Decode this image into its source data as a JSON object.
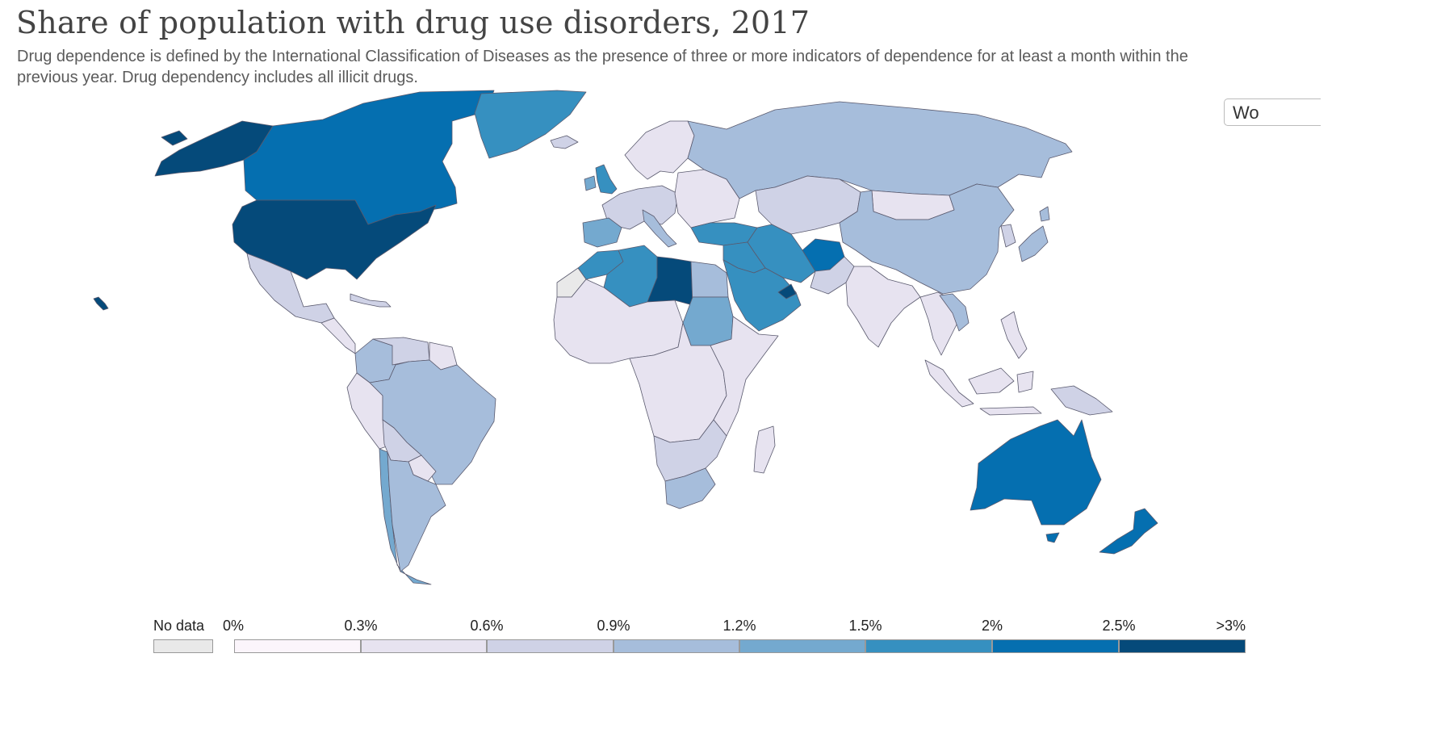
{
  "title": "Share of population with drug use disorders, 2017",
  "subtitle": "Drug dependence is defined by the International Classification of Diseases as the presence of three or more indicators of dependence for at least a month within the previous year. Drug dependency includes all illicit drugs.",
  "region_button": "Wo",
  "legend": {
    "no_data_label": "No data",
    "no_data_color": "#e9e9e9",
    "thresholds": [
      "0%",
      "0.3%",
      "0.6%",
      "0.9%",
      "1.2%",
      "1.5%",
      "2%",
      "2.5%",
      ">3%"
    ],
    "bins": [
      {
        "range": "0% - 0.3%",
        "color": "#fbf5fb"
      },
      {
        "range": "0.3% - 0.6%",
        "color": "#e7e3f0"
      },
      {
        "range": "0.6% - 0.9%",
        "color": "#cfd2e6"
      },
      {
        "range": "0.9% - 1.2%",
        "color": "#a6bddb"
      },
      {
        "range": "1.2% - 1.5%",
        "color": "#74a9cf"
      },
      {
        "range": "1.5% - 2%",
        "color": "#3690c0"
      },
      {
        "range": "2% - 2.5%",
        "color": "#056fb0"
      },
      {
        "range": "2.5% - >3%",
        "color": "#054a7a"
      }
    ]
  },
  "regions": [
    {
      "name": "Alaska",
      "bin": 7
    },
    {
      "name": "Canada",
      "bin": 6
    },
    {
      "name": "Greenland",
      "bin": 5
    },
    {
      "name": "United States",
      "bin": 7
    },
    {
      "name": "Mexico",
      "bin": 2
    },
    {
      "name": "Central America",
      "bin": 1
    },
    {
      "name": "Caribbean",
      "bin": 2
    },
    {
      "name": "Colombia",
      "bin": 3
    },
    {
      "name": "Venezuela",
      "bin": 2
    },
    {
      "name": "Guianas",
      "bin": 1
    },
    {
      "name": "Peru",
      "bin": 1
    },
    {
      "name": "Brazil",
      "bin": 3
    },
    {
      "name": "Bolivia",
      "bin": 2
    },
    {
      "name": "Paraguay",
      "bin": 1
    },
    {
      "name": "Chile",
      "bin": 4
    },
    {
      "name": "Argentina",
      "bin": 3
    },
    {
      "name": "Iceland",
      "bin": 2
    },
    {
      "name": "United Kingdom",
      "bin": 5
    },
    {
      "name": "Ireland",
      "bin": 4
    },
    {
      "name": "Scandinavia",
      "bin": 1
    },
    {
      "name": "Western Europe",
      "bin": 2
    },
    {
      "name": "Iberia",
      "bin": 4
    },
    {
      "name": "Italy",
      "bin": 3
    },
    {
      "name": "Eastern Europe",
      "bin": 1
    },
    {
      "name": "Russia",
      "bin": 3
    },
    {
      "name": "Central Asia",
      "bin": 2
    },
    {
      "name": "Mongolia",
      "bin": 1
    },
    {
      "name": "China",
      "bin": 3
    },
    {
      "name": "Korea",
      "bin": 2
    },
    {
      "name": "Japan",
      "bin": 3
    },
    {
      "name": "Turkey",
      "bin": 5
    },
    {
      "name": "Iran",
      "bin": 5
    },
    {
      "name": "Afghanistan",
      "bin": 6
    },
    {
      "name": "Pakistan",
      "bin": 2
    },
    {
      "name": "Middle East",
      "bin": 5
    },
    {
      "name": "Arabian Peninsula",
      "bin": 5
    },
    {
      "name": "United Arab Emirates",
      "bin": 7
    },
    {
      "name": "India",
      "bin": 1
    },
    {
      "name": "Southeast Asia",
      "bin": 1
    },
    {
      "name": "Vietnam",
      "bin": 3
    },
    {
      "name": "Indonesia",
      "bin": 1
    },
    {
      "name": "Philippines",
      "bin": 1
    },
    {
      "name": "Papua New Guinea",
      "bin": 2
    },
    {
      "name": "Morocco",
      "bin": 5
    },
    {
      "name": "Algeria",
      "bin": 5
    },
    {
      "name": "Libya",
      "bin": 7
    },
    {
      "name": "Egypt",
      "bin": 3
    },
    {
      "name": "Western Sahara",
      "bin": -1
    },
    {
      "name": "West Africa",
      "bin": 1
    },
    {
      "name": "Sudan",
      "bin": 4
    },
    {
      "name": "Central Africa",
      "bin": 1
    },
    {
      "name": "East Africa",
      "bin": 1
    },
    {
      "name": "Southern Africa",
      "bin": 2
    },
    {
      "name": "South Africa",
      "bin": 3
    },
    {
      "name": "Madagascar",
      "bin": 1
    },
    {
      "name": "Australia",
      "bin": 6
    },
    {
      "name": "Tasmania",
      "bin": 6
    },
    {
      "name": "New Zealand",
      "bin": 6
    },
    {
      "name": "Hawaii",
      "bin": 7
    }
  ]
}
